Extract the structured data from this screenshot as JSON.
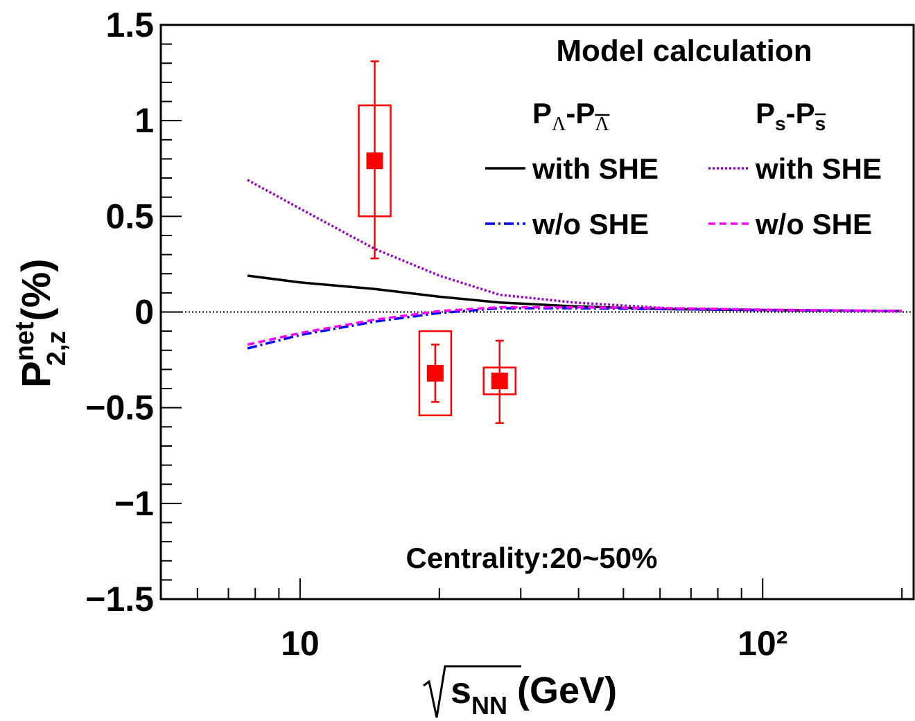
{
  "chart_data": {
    "type": "line",
    "xlabel": {
      "base": "s",
      "sub": "NN",
      "unit": "(GeV)"
    },
    "ylabel": {
      "base": "P",
      "sup": "net",
      "sub": "2,z",
      "unit": "(%)"
    },
    "xscale": "log",
    "xlim": [
      5,
      212
    ],
    "ylim": [
      -1.5,
      1.5
    ],
    "xticks": [
      10,
      {
        "value": 100,
        "label": "10²"
      }
    ],
    "xminorticks": [
      6,
      7,
      8,
      9,
      20,
      30,
      40,
      50,
      60,
      70,
      80,
      90,
      200
    ],
    "yticks": [
      {
        "value": -1.5,
        "label": "−1.5"
      },
      {
        "value": -1,
        "label": "−1"
      },
      {
        "value": -0.5,
        "label": "−0.5"
      },
      0,
      0.5,
      1,
      1.5
    ],
    "yminorticks": [
      -1.4,
      -1.3,
      -1.2,
      -1.1,
      -0.9,
      -0.8,
      -0.7,
      -0.6,
      -0.4,
      -0.3,
      -0.2,
      -0.1,
      0.1,
      0.2,
      0.3,
      0.4,
      0.6,
      0.7,
      0.8,
      0.9,
      1.1,
      1.2,
      1.3,
      1.4
    ],
    "zero_line": true,
    "legend_title": "Model calculation",
    "legend_headers": [
      [
        "P",
        "Λ",
        "-P",
        "Λ"
      ],
      [
        "P",
        "s",
        "-P",
        "s"
      ]
    ],
    "series": [
      {
        "name": "with SHE",
        "color": "#000000",
        "dash": "solid",
        "x": [
          7.7,
          10,
          14.5,
          20,
          27,
          39,
          62.4,
          100,
          200
        ],
        "values": [
          0.19,
          0.155,
          0.12,
          0.08,
          0.05,
          0.03,
          0.015,
          0.01,
          0.005
        ]
      },
      {
        "name": "w/o SHE",
        "color": "#0000ff",
        "dash": "dashdot",
        "x": [
          7.7,
          10,
          14.5,
          20,
          27,
          39,
          62.4,
          100,
          200
        ],
        "values": [
          -0.19,
          -0.12,
          -0.05,
          -0.005,
          0.02,
          0.02,
          0.015,
          0.01,
          0.005
        ]
      },
      {
        "name": "with SHE",
        "color": "#9900cc",
        "dash": "dotted",
        "x": [
          7.7,
          10,
          14.5,
          20,
          27,
          39,
          62.4,
          100,
          200
        ],
        "values": [
          0.69,
          0.54,
          0.33,
          0.19,
          0.09,
          0.05,
          0.02,
          0.012,
          0.005
        ]
      },
      {
        "name": "w/o SHE",
        "color": "#ff00ff",
        "dash": "dashed",
        "x": [
          7.7,
          10,
          14.5,
          20,
          27,
          39,
          62.4,
          100,
          200
        ],
        "values": [
          -0.17,
          -0.11,
          -0.04,
          0.005,
          0.025,
          0.025,
          0.02,
          0.012,
          0.005
        ]
      }
    ],
    "data": {
      "color": "#ff0000",
      "x": [
        14.5,
        19.6,
        27
      ],
      "values": [
        0.79,
        -0.32,
        -0.36
      ],
      "stat_low": [
        0.28,
        -0.47,
        -0.58
      ],
      "stat_high": [
        1.31,
        -0.17,
        -0.15
      ],
      "sys_low": [
        0.5,
        -0.54,
        -0.43
      ],
      "sys_high": [
        1.08,
        -0.1,
        -0.29
      ]
    },
    "annotation": "Centrality:20~50%"
  }
}
